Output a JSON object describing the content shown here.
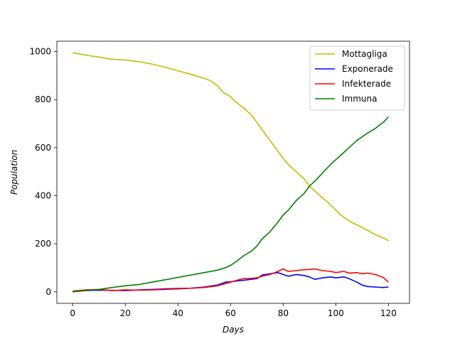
{
  "chart_data": {
    "type": "line",
    "title": "",
    "xlabel": "Days",
    "ylabel": "Population",
    "xlim": [
      -6,
      128
    ],
    "ylim": [
      -48,
      1043
    ],
    "xticks": [
      0,
      20,
      40,
      60,
      80,
      100,
      120
    ],
    "yticks": [
      0,
      200,
      400,
      600,
      800,
      1000
    ],
    "grid": false,
    "legend_position": "top-right",
    "series": [
      {
        "name": "Mottagliga",
        "color": "#bfbf00",
        "x": [
          0,
          5,
          10,
          15,
          20,
          25,
          30,
          35,
          40,
          45,
          50,
          52,
          55,
          57,
          60,
          62,
          65,
          68,
          70,
          72,
          75,
          78,
          80,
          82,
          85,
          88,
          90,
          92,
          95,
          97,
          100,
          102,
          105,
          108,
          110,
          112,
          115,
          118,
          120
        ],
        "y": [
          995,
          985,
          977,
          968,
          965,
          958,
          948,
          935,
          920,
          905,
          888,
          880,
          858,
          832,
          812,
          790,
          765,
          735,
          705,
          675,
          630,
          585,
          555,
          530,
          500,
          470,
          440,
          420,
          390,
          372,
          340,
          318,
          295,
          278,
          268,
          256,
          238,
          225,
          212
        ]
      },
      {
        "name": "Exponerade",
        "color": "#0000ff",
        "x": [
          0,
          5,
          10,
          15,
          20,
          25,
          30,
          35,
          40,
          45,
          50,
          55,
          58,
          60,
          65,
          70,
          72,
          75,
          78,
          80,
          82,
          85,
          88,
          90,
          92,
          95,
          98,
          100,
          103,
          105,
          108,
          110,
          112,
          115,
          118,
          120
        ],
        "y": [
          2,
          5,
          7,
          6,
          5,
          8,
          10,
          12,
          14,
          15,
          20,
          28,
          40,
          42,
          48,
          55,
          70,
          75,
          80,
          72,
          65,
          72,
          68,
          62,
          52,
          58,
          62,
          58,
          62,
          55,
          40,
          28,
          22,
          20,
          18,
          20
        ]
      },
      {
        "name": "Infekterade",
        "color": "#ff0000",
        "x": [
          0,
          5,
          10,
          15,
          20,
          25,
          30,
          35,
          40,
          45,
          50,
          55,
          60,
          63,
          65,
          68,
          70,
          72,
          75,
          78,
          80,
          82,
          85,
          88,
          90,
          92,
          95,
          98,
          100,
          103,
          105,
          108,
          110,
          112,
          115,
          118,
          120
        ],
        "y": [
          3,
          8,
          10,
          5,
          8,
          7,
          8,
          10,
          12,
          15,
          18,
          25,
          40,
          50,
          55,
          56,
          58,
          65,
          72,
          85,
          95,
          85,
          88,
          92,
          93,
          95,
          88,
          85,
          80,
          85,
          78,
          80,
          75,
          78,
          72,
          60,
          40
        ]
      },
      {
        "name": "Immuna",
        "color": "#008000",
        "x": [
          0,
          5,
          10,
          15,
          20,
          25,
          30,
          35,
          40,
          45,
          50,
          55,
          58,
          60,
          62,
          65,
          68,
          70,
          72,
          75,
          78,
          80,
          82,
          85,
          88,
          90,
          92,
          95,
          98,
          100,
          102,
          105,
          108,
          110,
          112,
          115,
          118,
          120
        ],
        "y": [
          0,
          5,
          10,
          18,
          25,
          30,
          40,
          50,
          60,
          70,
          80,
          90,
          100,
          110,
          125,
          150,
          170,
          190,
          220,
          250,
          290,
          320,
          340,
          380,
          410,
          440,
          460,
          495,
          530,
          550,
          570,
          600,
          630,
          645,
          660,
          680,
          705,
          728
        ]
      }
    ]
  }
}
